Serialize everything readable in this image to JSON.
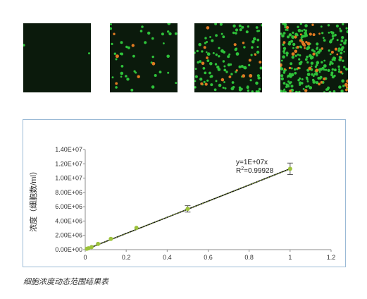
{
  "microscopy": {
    "background": "#0b1a0c",
    "live_cell_color": "#2ec23a",
    "dead_cell_color": "#e07a22",
    "tiles": [
      {
        "green_count": 2,
        "orange_count": 0
      },
      {
        "green_count": 40,
        "orange_count": 6
      },
      {
        "green_count": 110,
        "orange_count": 16
      },
      {
        "green_count": 230,
        "orange_count": 40
      }
    ]
  },
  "chart_data": {
    "type": "scatter",
    "title": "",
    "xlabel": "",
    "ylabel": "浓度（细胞数/ml）",
    "xlim": [
      0,
      1.2
    ],
    "ylim": [
      0,
      14000000
    ],
    "xticks": [
      0,
      0.2,
      0.4,
      0.6,
      0.8,
      1,
      1.2
    ],
    "xtick_labels": [
      "0",
      "0.2",
      "0.4",
      "0.6",
      "0.8",
      "1",
      "1.2"
    ],
    "yticks": [
      0,
      2000000,
      4000000,
      6000000,
      8000000,
      10000000,
      12000000,
      14000000
    ],
    "ytick_labels": [
      "0.00E+00",
      "2.00E+06",
      "4.00E+06",
      "6.00E+06",
      "8.00E+06",
      "1.00E+07",
      "1.20E+07",
      "1.40E+07"
    ],
    "grid": false,
    "marker_color": "#9cc23c",
    "trendline_color": "#111111",
    "points": [
      {
        "x": 0.0078,
        "y": 120000
      },
      {
        "x": 0.0156,
        "y": 190000
      },
      {
        "x": 0.031,
        "y": 360000
      },
      {
        "x": 0.0625,
        "y": 800000
      },
      {
        "x": 0.125,
        "y": 1500000
      },
      {
        "x": 0.25,
        "y": 3050000
      },
      {
        "x": 0.5,
        "y": 5700000
      },
      {
        "x": 1.0,
        "y": 11300000
      }
    ],
    "error_bars": [
      {
        "x": 0.5,
        "y": 5700000,
        "err": 450000
      },
      {
        "x": 1.0,
        "y": 11300000,
        "err": 800000
      }
    ],
    "trendline": {
      "slope": 11300000,
      "intercept": 0
    },
    "annotation": {
      "equation": "y=1E+07x",
      "r2_label": "R",
      "r2_sup": "2",
      "r2_value": "=0.99928"
    }
  },
  "caption": "细胞浓度动态范围结果表"
}
